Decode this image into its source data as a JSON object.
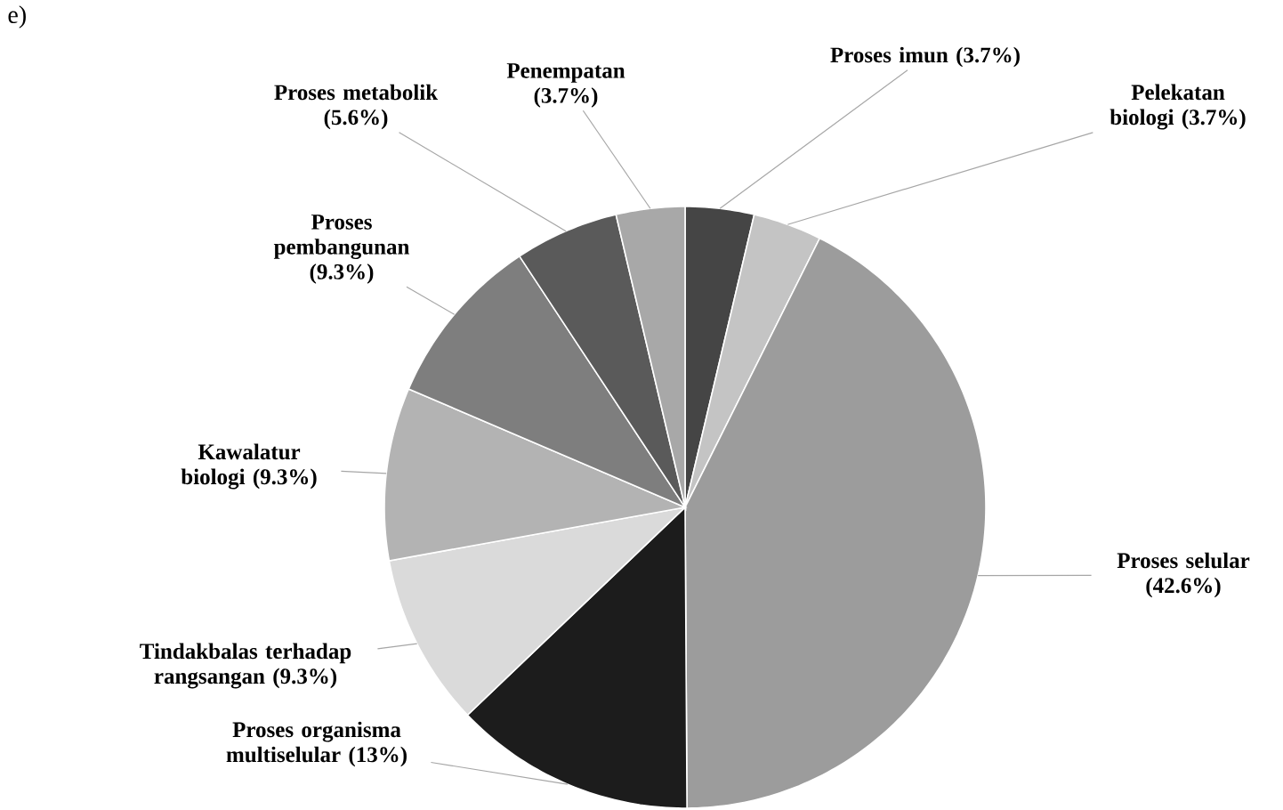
{
  "chart_data": {
    "type": "pie",
    "categories": [
      "Proses imun",
      "Pelekatan biologi",
      "Proses selular",
      "Proses organisma multiselular",
      "Tindakbalas terhadap rangsangan",
      "Kawalatur biologi",
      "Proses pembangunan",
      "Proses metabolik",
      "Penempatan"
    ],
    "values": [
      3.7,
      3.7,
      42.6,
      13,
      9.3,
      9.3,
      9.3,
      5.6,
      3.7
    ],
    "value_labels": [
      "(3.7%)",
      "(3.7%)",
      "(42.6%)",
      "(13%)",
      "(9.3%)",
      "(9.3%)",
      "(9.3%)",
      "(5.6%)",
      "(3.7%)"
    ],
    "colors": [
      "#454545",
      "#c4c4c4",
      "#9c9c9c",
      "#1c1c1c",
      "#dadada",
      "#b3b3b3",
      "#7e7e7e",
      "#5a5a5a",
      "#a8a8a8"
    ],
    "annotations": [
      "e)"
    ]
  }
}
